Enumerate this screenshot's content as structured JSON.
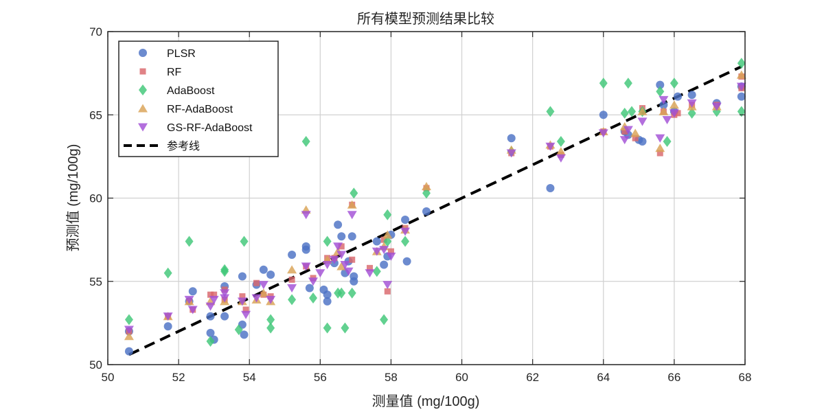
{
  "chart_data": {
    "type": "scatter",
    "title": "所有模型预测结果比较",
    "xlabel": "测量值 (mg/100g)",
    "ylabel": "预测值 (mg/100g)",
    "xlim": [
      50,
      68
    ],
    "ylim": [
      50,
      70
    ],
    "xticks": [
      50,
      52,
      54,
      56,
      58,
      60,
      62,
      64,
      66,
      68
    ],
    "yticks": [
      50,
      55,
      60,
      65,
      70
    ],
    "grid": true,
    "legend_position": "top-left",
    "series": [
      {
        "name": "PLSR",
        "marker": "circle",
        "color": "#4c72c4",
        "points": [
          [
            50.6,
            50.8
          ],
          [
            50.6,
            52.0
          ],
          [
            51.7,
            52.3
          ],
          [
            52.3,
            53.8
          ],
          [
            52.4,
            54.4
          ],
          [
            52.9,
            51.9
          ],
          [
            53.0,
            51.5
          ],
          [
            52.9,
            52.9
          ],
          [
            53.3,
            52.9
          ],
          [
            53.3,
            54.7
          ],
          [
            53.8,
            55.3
          ],
          [
            53.8,
            52.4
          ],
          [
            53.85,
            51.8
          ],
          [
            54.2,
            54.8
          ],
          [
            54.4,
            55.7
          ],
          [
            54.6,
            55.4
          ],
          [
            55.2,
            56.6
          ],
          [
            55.6,
            57.1
          ],
          [
            55.6,
            56.9
          ],
          [
            55.7,
            54.6
          ],
          [
            56.1,
            54.5
          ],
          [
            56.2,
            54.2
          ],
          [
            56.2,
            53.8
          ],
          [
            56.4,
            56.1
          ],
          [
            56.5,
            58.4
          ],
          [
            56.6,
            57.7
          ],
          [
            56.7,
            55.5
          ],
          [
            56.8,
            56.2
          ],
          [
            56.9,
            57.7
          ],
          [
            56.95,
            55.3
          ],
          [
            56.95,
            55.0
          ],
          [
            57.6,
            57.4
          ],
          [
            57.8,
            56.0
          ],
          [
            57.9,
            56.5
          ],
          [
            58.0,
            57.8
          ],
          [
            58.4,
            58.7
          ],
          [
            58.45,
            56.2
          ],
          [
            59.0,
            59.2
          ],
          [
            61.4,
            63.6
          ],
          [
            62.5,
            60.6
          ],
          [
            64.0,
            65.0
          ],
          [
            64.6,
            64.0
          ],
          [
            64.7,
            63.8
          ],
          [
            65.0,
            63.5
          ],
          [
            65.1,
            63.4
          ],
          [
            65.6,
            66.8
          ],
          [
            65.7,
            65.6
          ],
          [
            66.0,
            65.2
          ],
          [
            66.1,
            66.1
          ],
          [
            66.5,
            66.2
          ],
          [
            67.2,
            65.7
          ],
          [
            67.9,
            66.7
          ],
          [
            67.9,
            66.1
          ]
        ]
      },
      {
        "name": "RF",
        "marker": "square",
        "color": "#d9676b",
        "points": [
          [
            50.6,
            52.0
          ],
          [
            51.7,
            52.9
          ],
          [
            52.3,
            53.8
          ],
          [
            52.4,
            53.3
          ],
          [
            52.9,
            54.2
          ],
          [
            53.0,
            54.2
          ],
          [
            53.3,
            53.9
          ],
          [
            53.3,
            54.5
          ],
          [
            53.8,
            54.1
          ],
          [
            53.9,
            53.3
          ],
          [
            54.2,
            54.9
          ],
          [
            54.4,
            54.2
          ],
          [
            54.6,
            54.1
          ],
          [
            55.2,
            55.1
          ],
          [
            55.6,
            55.9
          ],
          [
            55.8,
            55.2
          ],
          [
            56.2,
            56.4
          ],
          [
            56.4,
            56.4
          ],
          [
            56.6,
            57.1
          ],
          [
            56.9,
            59.6
          ],
          [
            56.9,
            56.3
          ],
          [
            57.4,
            55.8
          ],
          [
            57.8,
            57.5
          ],
          [
            57.9,
            54.4
          ],
          [
            58.0,
            56.8
          ],
          [
            58.4,
            58.2
          ],
          [
            59.0,
            60.6
          ],
          [
            61.4,
            62.7
          ],
          [
            62.5,
            63.1
          ],
          [
            62.8,
            62.6
          ],
          [
            64.0,
            64.0
          ],
          [
            64.6,
            64.0
          ],
          [
            64.9,
            63.6
          ],
          [
            65.1,
            65.4
          ],
          [
            65.6,
            62.7
          ],
          [
            65.7,
            65.2
          ],
          [
            66.0,
            65.0
          ],
          [
            66.1,
            65.1
          ],
          [
            66.5,
            65.6
          ],
          [
            67.2,
            65.6
          ],
          [
            67.9,
            67.3
          ],
          [
            67.9,
            66.6
          ]
        ]
      },
      {
        "name": "AdaBoost",
        "marker": "diamond",
        "color": "#3fc777",
        "points": [
          [
            50.6,
            52.7
          ],
          [
            51.7,
            55.5
          ],
          [
            52.3,
            57.4
          ],
          [
            52.9,
            51.4
          ],
          [
            53.3,
            55.7
          ],
          [
            53.3,
            55.6
          ],
          [
            53.7,
            52.1
          ],
          [
            53.85,
            57.4
          ],
          [
            54.6,
            52.7
          ],
          [
            54.6,
            52.2
          ],
          [
            55.2,
            53.9
          ],
          [
            55.6,
            63.4
          ],
          [
            55.8,
            54.0
          ],
          [
            56.2,
            52.2
          ],
          [
            56.2,
            57.4
          ],
          [
            56.5,
            54.3
          ],
          [
            56.6,
            54.3
          ],
          [
            56.7,
            52.2
          ],
          [
            56.9,
            54.3
          ],
          [
            56.95,
            60.3
          ],
          [
            57.6,
            55.6
          ],
          [
            57.8,
            52.7
          ],
          [
            57.9,
            59.0
          ],
          [
            57.9,
            57.4
          ],
          [
            58.4,
            57.4
          ],
          [
            59.0,
            60.3
          ],
          [
            61.4,
            62.8
          ],
          [
            62.5,
            65.2
          ],
          [
            62.8,
            63.4
          ],
          [
            64.0,
            66.9
          ],
          [
            64.6,
            65.1
          ],
          [
            64.7,
            66.9
          ],
          [
            64.8,
            65.2
          ],
          [
            65.1,
            65.2
          ],
          [
            65.6,
            66.4
          ],
          [
            65.8,
            63.4
          ],
          [
            66.0,
            66.9
          ],
          [
            66.5,
            65.1
          ],
          [
            67.2,
            65.2
          ],
          [
            67.9,
            68.1
          ],
          [
            67.9,
            65.2
          ]
        ]
      },
      {
        "name": "RF-AdaBoost",
        "marker": "triangle-up",
        "color": "#d9a256",
        "points": [
          [
            50.6,
            51.7
          ],
          [
            51.7,
            52.9
          ],
          [
            52.3,
            53.8
          ],
          [
            52.9,
            53.8
          ],
          [
            53.3,
            53.8
          ],
          [
            53.8,
            53.8
          ],
          [
            54.2,
            53.9
          ],
          [
            54.4,
            54.3
          ],
          [
            54.6,
            53.8
          ],
          [
            55.2,
            55.7
          ],
          [
            55.6,
            59.3
          ],
          [
            56.2,
            56.3
          ],
          [
            56.5,
            56.8
          ],
          [
            56.6,
            55.9
          ],
          [
            56.9,
            59.6
          ],
          [
            57.6,
            56.8
          ],
          [
            57.8,
            57.1
          ],
          [
            57.9,
            57.8
          ],
          [
            58.4,
            58.1
          ],
          [
            59.0,
            60.7
          ],
          [
            61.4,
            62.9
          ],
          [
            62.5,
            63.2
          ],
          [
            62.8,
            62.8
          ],
          [
            64.0,
            64.0
          ],
          [
            64.6,
            64.3
          ],
          [
            64.9,
            63.9
          ],
          [
            65.1,
            65.2
          ],
          [
            65.6,
            63.0
          ],
          [
            65.7,
            65.2
          ],
          [
            66.0,
            65.6
          ],
          [
            66.5,
            65.5
          ],
          [
            67.2,
            65.5
          ],
          [
            67.9,
            67.4
          ]
        ]
      },
      {
        "name": "GS-RF-AdaBoost",
        "marker": "triangle-down",
        "color": "#a24fd6",
        "points": [
          [
            50.6,
            52.1
          ],
          [
            51.7,
            52.9
          ],
          [
            52.3,
            53.9
          ],
          [
            52.4,
            53.3
          ],
          [
            52.9,
            53.5
          ],
          [
            53.0,
            53.9
          ],
          [
            53.3,
            54.0
          ],
          [
            53.3,
            54.3
          ],
          [
            53.8,
            53.8
          ],
          [
            53.9,
            53.0
          ],
          [
            54.2,
            54.0
          ],
          [
            54.4,
            54.8
          ],
          [
            54.6,
            53.9
          ],
          [
            55.2,
            54.6
          ],
          [
            55.6,
            55.9
          ],
          [
            55.6,
            59.0
          ],
          [
            55.8,
            55.0
          ],
          [
            56.0,
            55.5
          ],
          [
            56.2,
            56.0
          ],
          [
            56.4,
            56.3
          ],
          [
            56.5,
            57.1
          ],
          [
            56.6,
            56.6
          ],
          [
            56.7,
            56.0
          ],
          [
            56.8,
            55.6
          ],
          [
            56.9,
            59.0
          ],
          [
            57.4,
            55.5
          ],
          [
            57.6,
            56.8
          ],
          [
            57.8,
            56.9
          ],
          [
            57.9,
            54.8
          ],
          [
            58.0,
            56.5
          ],
          [
            58.4,
            58.0
          ],
          [
            61.4,
            62.7
          ],
          [
            62.5,
            63.1
          ],
          [
            62.8,
            62.4
          ],
          [
            64.0,
            63.9
          ],
          [
            64.6,
            63.5
          ],
          [
            64.7,
            64.1
          ],
          [
            65.1,
            64.6
          ],
          [
            65.6,
            63.6
          ],
          [
            65.7,
            65.9
          ],
          [
            65.8,
            64.7
          ],
          [
            66.0,
            65.1
          ],
          [
            66.5,
            65.7
          ],
          [
            67.2,
            65.5
          ],
          [
            67.9,
            66.7
          ]
        ]
      },
      {
        "name": "参考线",
        "marker": "dashed-line",
        "color": "#000000",
        "line": [
          [
            50.6,
            50.6
          ],
          [
            67.9,
            67.9
          ]
        ]
      }
    ]
  }
}
